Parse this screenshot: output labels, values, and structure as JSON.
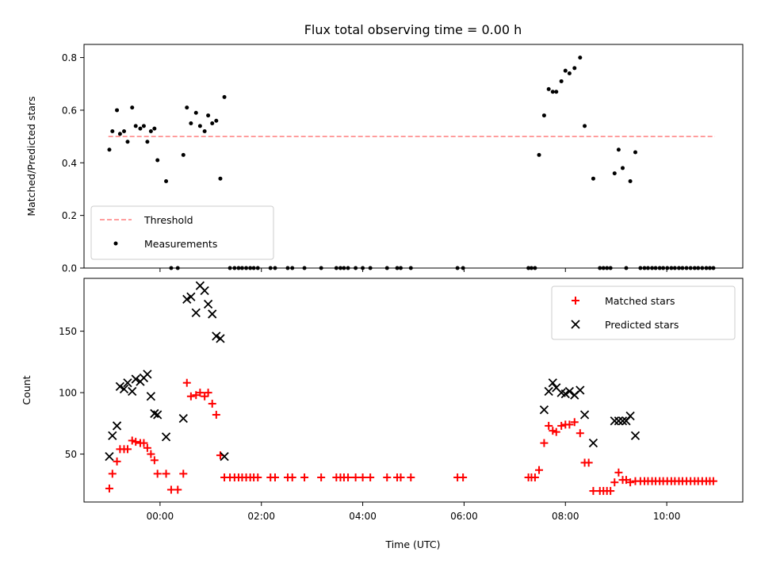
{
  "chart_data": [
    {
      "type": "scatter",
      "title": "Flux total observing time = 0.00 h",
      "ylabel": "Matched/Predicted stars",
      "ylim": [
        0,
        0.85
      ],
      "yticks": [
        0.0,
        0.2,
        0.4,
        0.6,
        0.8
      ],
      "ytick_labels": [
        "0.0",
        "0.2",
        "0.4",
        "0.6",
        "0.8"
      ],
      "legend_position": "lower-left",
      "threshold": {
        "name": "Threshold",
        "value": 0.5,
        "x_range": [
          -1.02,
          10.95
        ],
        "color": "#ff7f7f",
        "style": "dashed"
      },
      "series": [
        {
          "name": "Measurements",
          "color": "#000000",
          "points": [
            [
              -1.0,
              0.45
            ],
            [
              -0.94,
              0.52
            ],
            [
              -0.85,
              0.6
            ],
            [
              -0.79,
              0.51
            ],
            [
              -0.71,
              0.52
            ],
            [
              -0.64,
              0.48
            ],
            [
              -0.55,
              0.61
            ],
            [
              -0.48,
              0.54
            ],
            [
              -0.39,
              0.53
            ],
            [
              -0.32,
              0.54
            ],
            [
              -0.25,
              0.48
            ],
            [
              -0.18,
              0.52
            ],
            [
              -0.11,
              0.53
            ],
            [
              -0.05,
              0.41
            ],
            [
              0.12,
              0.33
            ],
            [
              0.22,
              0.0
            ],
            [
              0.35,
              0.0
            ],
            [
              0.46,
              0.43
            ],
            [
              0.53,
              0.61
            ],
            [
              0.61,
              0.55
            ],
            [
              0.71,
              0.59
            ],
            [
              0.79,
              0.54
            ],
            [
              0.88,
              0.52
            ],
            [
              0.95,
              0.58
            ],
            [
              1.03,
              0.55
            ],
            [
              1.11,
              0.56
            ],
            [
              1.19,
              0.34
            ],
            [
              1.27,
              0.65
            ],
            [
              1.38,
              0.0
            ],
            [
              1.47,
              0.0
            ],
            [
              1.55,
              0.0
            ],
            [
              1.62,
              0.0
            ],
            [
              1.7,
              0.0
            ],
            [
              1.78,
              0.0
            ],
            [
              1.85,
              0.0
            ],
            [
              1.93,
              0.0
            ],
            [
              2.18,
              0.0
            ],
            [
              2.27,
              0.0
            ],
            [
              2.52,
              0.0
            ],
            [
              2.61,
              0.0
            ],
            [
              2.85,
              0.0
            ],
            [
              3.18,
              0.0
            ],
            [
              3.48,
              0.0
            ],
            [
              3.56,
              0.0
            ],
            [
              3.63,
              0.0
            ],
            [
              3.71,
              0.0
            ],
            [
              3.86,
              0.0
            ],
            [
              4.0,
              0.0
            ],
            [
              4.15,
              0.0
            ],
            [
              4.48,
              0.0
            ],
            [
              4.68,
              0.0
            ],
            [
              4.75,
              0.0
            ],
            [
              4.95,
              0.0
            ],
            [
              5.87,
              0.0
            ],
            [
              5.98,
              0.0
            ],
            [
              7.27,
              0.0
            ],
            [
              7.33,
              0.0
            ],
            [
              7.4,
              0.0
            ],
            [
              7.48,
              0.43
            ],
            [
              7.58,
              0.58
            ],
            [
              7.67,
              0.68
            ],
            [
              7.75,
              0.67
            ],
            [
              7.82,
              0.67
            ],
            [
              7.92,
              0.71
            ],
            [
              8.0,
              0.75
            ],
            [
              8.08,
              0.74
            ],
            [
              8.18,
              0.76
            ],
            [
              8.29,
              0.8
            ],
            [
              8.38,
              0.54
            ],
            [
              8.55,
              0.34
            ],
            [
              8.68,
              0.0
            ],
            [
              8.75,
              0.0
            ],
            [
              8.82,
              0.0
            ],
            [
              8.89,
              0.0
            ],
            [
              8.97,
              0.36
            ],
            [
              9.05,
              0.45
            ],
            [
              9.13,
              0.38
            ],
            [
              9.2,
              0.0
            ],
            [
              9.28,
              0.33
            ],
            [
              9.38,
              0.44
            ],
            [
              9.48,
              0.0
            ],
            [
              9.56,
              0.0
            ],
            [
              9.63,
              0.0
            ],
            [
              9.71,
              0.0
            ],
            [
              9.78,
              0.0
            ],
            [
              9.86,
              0.0
            ],
            [
              9.93,
              0.0
            ],
            [
              10.01,
              0.0
            ],
            [
              10.09,
              0.0
            ],
            [
              10.16,
              0.0
            ],
            [
              10.24,
              0.0
            ],
            [
              10.31,
              0.0
            ],
            [
              10.39,
              0.0
            ],
            [
              10.47,
              0.0
            ],
            [
              10.55,
              0.0
            ],
            [
              10.62,
              0.0
            ],
            [
              10.7,
              0.0
            ],
            [
              10.78,
              0.0
            ],
            [
              10.85,
              0.0
            ],
            [
              10.92,
              0.0
            ]
          ]
        }
      ]
    },
    {
      "type": "scatter",
      "xlabel": "Time (UTC)",
      "ylabel": "Count",
      "xlim": [
        -1.5,
        11.5
      ],
      "ylim": [
        11,
        193
      ],
      "xticks": [
        0,
        2,
        4,
        6,
        8,
        10
      ],
      "xtick_labels": [
        "00:00",
        "02:00",
        "04:00",
        "06:00",
        "08:00",
        "10:00"
      ],
      "yticks": [
        50,
        100,
        150
      ],
      "ytick_labels": [
        "50",
        "100",
        "150"
      ],
      "legend_position": "top-right",
      "series": [
        {
          "name": "Matched stars",
          "marker": "+",
          "color": "#ff0000",
          "points": [
            [
              -1.0,
              22
            ],
            [
              -0.94,
              34
            ],
            [
              -0.85,
              44
            ],
            [
              -0.79,
              54
            ],
            [
              -0.71,
              54
            ],
            [
              -0.64,
              54
            ],
            [
              -0.55,
              61
            ],
            [
              -0.48,
              60
            ],
            [
              -0.39,
              59
            ],
            [
              -0.32,
              59
            ],
            [
              -0.25,
              55
            ],
            [
              -0.18,
              50
            ],
            [
              -0.11,
              45
            ],
            [
              -0.05,
              34
            ],
            [
              0.12,
              34
            ],
            [
              0.22,
              21
            ],
            [
              0.35,
              21
            ],
            [
              0.46,
              34
            ],
            [
              0.53,
              108
            ],
            [
              0.61,
              97
            ],
            [
              0.71,
              98
            ],
            [
              0.79,
              100
            ],
            [
              0.88,
              97
            ],
            [
              0.95,
              100
            ],
            [
              1.03,
              91
            ],
            [
              1.11,
              82
            ],
            [
              1.19,
              49
            ],
            [
              1.27,
              31
            ],
            [
              1.38,
              31
            ],
            [
              1.47,
              31
            ],
            [
              1.55,
              31
            ],
            [
              1.62,
              31
            ],
            [
              1.7,
              31
            ],
            [
              1.78,
              31
            ],
            [
              1.85,
              31
            ],
            [
              1.93,
              31
            ],
            [
              2.18,
              31
            ],
            [
              2.27,
              31
            ],
            [
              2.52,
              31
            ],
            [
              2.61,
              31
            ],
            [
              2.85,
              31
            ],
            [
              3.18,
              31
            ],
            [
              3.48,
              31
            ],
            [
              3.56,
              31
            ],
            [
              3.63,
              31
            ],
            [
              3.71,
              31
            ],
            [
              3.86,
              31
            ],
            [
              4.0,
              31
            ],
            [
              4.15,
              31
            ],
            [
              4.48,
              31
            ],
            [
              4.68,
              31
            ],
            [
              4.75,
              31
            ],
            [
              4.95,
              31
            ],
            [
              5.87,
              31
            ],
            [
              5.98,
              31
            ],
            [
              7.27,
              31
            ],
            [
              7.33,
              31
            ],
            [
              7.4,
              31
            ],
            [
              7.48,
              37
            ],
            [
              7.58,
              59
            ],
            [
              7.67,
              73
            ],
            [
              7.75,
              69
            ],
            [
              7.82,
              68
            ],
            [
              7.92,
              73
            ],
            [
              8.0,
              74
            ],
            [
              8.08,
              74
            ],
            [
              8.18,
              76
            ],
            [
              8.29,
              67
            ],
            [
              8.38,
              43
            ],
            [
              8.46,
              43
            ],
            [
              8.55,
              20
            ],
            [
              8.68,
              20
            ],
            [
              8.75,
              20
            ],
            [
              8.82,
              20
            ],
            [
              8.89,
              20
            ],
            [
              8.97,
              27
            ],
            [
              9.05,
              35
            ],
            [
              9.13,
              29
            ],
            [
              9.2,
              29
            ],
            [
              9.28,
              27
            ],
            [
              9.38,
              28
            ],
            [
              9.48,
              28
            ],
            [
              9.56,
              28
            ],
            [
              9.63,
              28
            ],
            [
              9.71,
              28
            ],
            [
              9.78,
              28
            ],
            [
              9.86,
              28
            ],
            [
              9.93,
              28
            ],
            [
              10.01,
              28
            ],
            [
              10.09,
              28
            ],
            [
              10.16,
              28
            ],
            [
              10.24,
              28
            ],
            [
              10.31,
              28
            ],
            [
              10.39,
              28
            ],
            [
              10.47,
              28
            ],
            [
              10.55,
              28
            ],
            [
              10.62,
              28
            ],
            [
              10.7,
              28
            ],
            [
              10.78,
              28
            ],
            [
              10.85,
              28
            ],
            [
              10.92,
              28
            ]
          ]
        },
        {
          "name": "Predicted stars",
          "marker": "x",
          "color": "#000000",
          "points": [
            [
              -1.0,
              48
            ],
            [
              -0.94,
              65
            ],
            [
              -0.85,
              73
            ],
            [
              -0.79,
              105
            ],
            [
              -0.71,
              103
            ],
            [
              -0.64,
              108
            ],
            [
              -0.55,
              101
            ],
            [
              -0.48,
              111
            ],
            [
              -0.39,
              109
            ],
            [
              -0.32,
              112
            ],
            [
              -0.25,
              115
            ],
            [
              -0.18,
              97
            ],
            [
              -0.11,
              83
            ],
            [
              -0.05,
              82
            ],
            [
              0.12,
              64
            ],
            [
              0.46,
              79
            ],
            [
              0.53,
              176
            ],
            [
              0.61,
              178
            ],
            [
              0.71,
              165
            ],
            [
              0.79,
              187
            ],
            [
              0.88,
              183
            ],
            [
              0.95,
              172
            ],
            [
              1.03,
              164
            ],
            [
              1.11,
              146
            ],
            [
              1.19,
              144
            ],
            [
              1.27,
              48
            ],
            [
              7.58,
              86
            ],
            [
              7.67,
              101
            ],
            [
              7.75,
              108
            ],
            [
              7.82,
              104
            ],
            [
              7.92,
              100
            ],
            [
              8.0,
              99
            ],
            [
              8.08,
              101
            ],
            [
              8.18,
              98
            ],
            [
              8.29,
              102
            ],
            [
              8.38,
              82
            ],
            [
              8.55,
              59
            ],
            [
              8.97,
              77
            ],
            [
              9.05,
              77
            ],
            [
              9.13,
              77
            ],
            [
              9.2,
              77
            ],
            [
              9.28,
              81
            ],
            [
              9.38,
              65
            ]
          ]
        }
      ]
    }
  ]
}
